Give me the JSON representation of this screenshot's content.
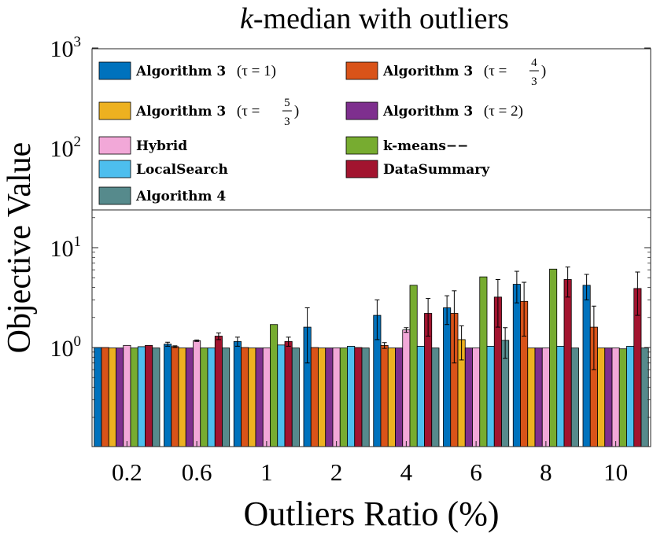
{
  "chart_data": {
    "type": "bar",
    "title_italic": "k",
    "title_rest": "-median with outliers",
    "xlabel": "Outliers Ratio (%)",
    "ylabel": "Objective Value",
    "yscale": "log",
    "ylim": [
      0.1,
      1000
    ],
    "yticks": [
      {
        "value": 1,
        "base": "10",
        "exp": "0"
      },
      {
        "value": 10,
        "base": "10",
        "exp": "1"
      },
      {
        "value": 100,
        "base": "10",
        "exp": "2"
      },
      {
        "value": 1000,
        "base": "10",
        "exp": "3"
      }
    ],
    "categories": [
      "0.2",
      "0.6",
      "1",
      "2",
      "4",
      "6",
      "8",
      "10"
    ],
    "legend_position": "top",
    "series": [
      {
        "name": "Algorithm 3",
        "param": "(τ = 1)",
        "color": "#0072bd",
        "values": [
          1.0,
          1.08,
          1.15,
          1.6,
          2.1,
          2.5,
          4.3,
          4.2
        ],
        "err": [
          0,
          0.05,
          0.12,
          0.9,
          0.9,
          0.8,
          1.5,
          1.2
        ]
      },
      {
        "name": "Algorithm 3",
        "param_pre": "(τ = ",
        "frac_num": "4",
        "frac_den": "3",
        "param_post": ")",
        "color": "#d95319",
        "values": [
          1.0,
          1.02,
          1.0,
          1.0,
          1.05,
          2.2,
          2.9,
          1.6
        ],
        "err": [
          0,
          0.02,
          0,
          0,
          0.07,
          1.5,
          1.6,
          1.0
        ]
      },
      {
        "name": "Algorithm 3",
        "param_pre": "(τ = ",
        "frac_num": "5",
        "frac_den": "3",
        "param_post": ")",
        "color": "#edb120",
        "values": [
          0.99,
          0.99,
          0.99,
          0.99,
          0.99,
          1.2,
          0.99,
          0.99
        ],
        "err": [
          0,
          0,
          0,
          0,
          0,
          0.45,
          0,
          0
        ]
      },
      {
        "name": "Algorithm 3",
        "param": "(τ = 2)",
        "color": "#7e2f8e",
        "values": [
          0.99,
          0.99,
          0.99,
          0.99,
          0.99,
          0.99,
          0.99,
          0.99
        ],
        "err": [
          0,
          0,
          0,
          0,
          0,
          0,
          0,
          0
        ]
      },
      {
        "name": "Hybrid",
        "color": "#f2a8d8",
        "values": [
          1.05,
          1.17,
          0.99,
          0.99,
          1.5,
          0.99,
          0.99,
          0.99
        ],
        "err": [
          0,
          0.02,
          0,
          0,
          0.08,
          0,
          0,
          0
        ]
      },
      {
        "name": "k-means−−",
        "color": "#77ac30",
        "values": [
          0.99,
          0.99,
          1.7,
          0.99,
          4.2,
          5.1,
          6.1,
          0.97
        ],
        "err": [
          0,
          0,
          0,
          0,
          0,
          0,
          0,
          0
        ]
      },
      {
        "name": "LocalSearch",
        "color": "#4dbeee",
        "values": [
          1.02,
          0.99,
          1.06,
          1.03,
          1.03,
          1.03,
          1.03,
          1.03
        ],
        "err": [
          0,
          0,
          0,
          0,
          0,
          0,
          0,
          0
        ]
      },
      {
        "name": "DataSummary",
        "color": "#a2142f",
        "values": [
          1.05,
          1.3,
          1.15,
          1.0,
          2.2,
          3.2,
          4.8,
          3.9
        ],
        "err": [
          0,
          0.1,
          0.12,
          0,
          0.9,
          1.6,
          1.6,
          1.8
        ]
      },
      {
        "name": "Algorithm 4",
        "color": "#568a8c",
        "values": [
          0.99,
          0.99,
          0.99,
          0.99,
          0.99,
          1.18,
          0.99,
          0.99
        ],
        "err": [
          0,
          0,
          0,
          0,
          0,
          0.4,
          0,
          0
        ]
      }
    ]
  }
}
